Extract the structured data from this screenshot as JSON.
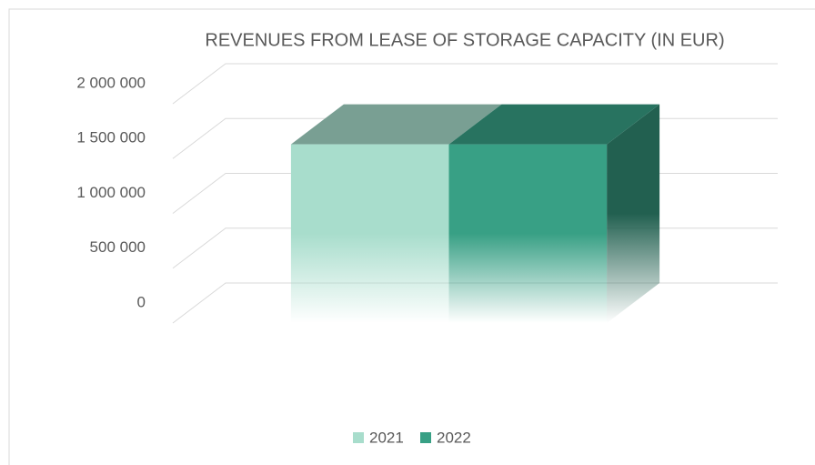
{
  "chart_data": {
    "type": "bar3d",
    "title": "REVENUES FROM LEASE OF STORAGE CAPACITY (IN EUR)",
    "categories": [
      null
    ],
    "series": [
      {
        "name": "2021",
        "color": "#a8ddcc",
        "values": [
          1630000
        ]
      },
      {
        "name": "2022",
        "color": "#38a085",
        "values": [
          1630000
        ]
      }
    ],
    "ylim": [
      0,
      2000000
    ],
    "yticks": [
      0,
      {
        "value": 500000,
        "label": "500 000"
      },
      {
        "value": 1000000,
        "label": "1 000 000"
      },
      {
        "value": 1500000,
        "label": "1 500 000"
      },
      {
        "value": 2000000,
        "label": "2 000 000"
      }
    ],
    "grid": true,
    "legend": "bottom"
  }
}
